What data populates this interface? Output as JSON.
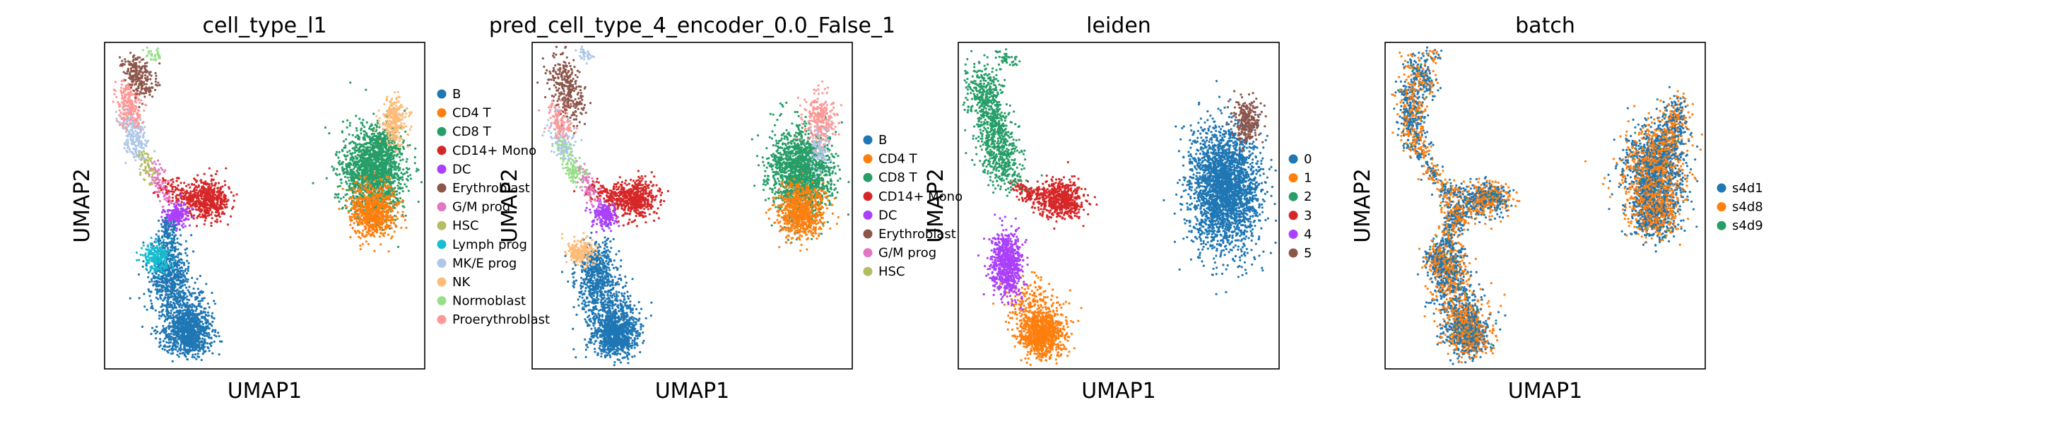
{
  "chart_data": [
    {
      "type": "scatter",
      "title": "cell_type_l1",
      "xlabel": "UMAP1",
      "ylabel": "UMAP2",
      "grid": false,
      "ticks": false,
      "legend_position": "right",
      "series": [
        {
          "name": "B",
          "color": "#1f77b4"
        },
        {
          "name": "CD4 T",
          "color": "#ff7f0e"
        },
        {
          "name": "CD8 T",
          "color": "#279e68"
        },
        {
          "name": "CD14+ Mono",
          "color": "#d62728"
        },
        {
          "name": "DC",
          "color": "#aa40fc"
        },
        {
          "name": "Erythroblast",
          "color": "#8c564b"
        },
        {
          "name": "G/M prog",
          "color": "#e377c2"
        },
        {
          "name": "HSC",
          "color": "#b5bd61"
        },
        {
          "name": "Lymph prog",
          "color": "#17becf"
        },
        {
          "name": "MK/E prog",
          "color": "#aec7e8"
        },
        {
          "name": "NK",
          "color": "#ffbb78"
        },
        {
          "name": "Normoblast",
          "color": "#98df8a"
        },
        {
          "name": "Proerythroblast",
          "color": "#ff9896"
        }
      ]
    },
    {
      "type": "scatter",
      "title": "pred_cell_type_4_encoder_0.0_False_1",
      "xlabel": "UMAP1",
      "ylabel": "UMAP2",
      "grid": false,
      "ticks": false,
      "legend_position": "right",
      "series": [
        {
          "name": "B",
          "color": "#1f77b4"
        },
        {
          "name": "CD4 T",
          "color": "#ff7f0e"
        },
        {
          "name": "CD8 T",
          "color": "#279e68"
        },
        {
          "name": "CD14+ Mono",
          "color": "#d62728"
        },
        {
          "name": "DC",
          "color": "#aa40fc"
        },
        {
          "name": "Erythroblast",
          "color": "#8c564b"
        },
        {
          "name": "G/M prog",
          "color": "#e377c2"
        },
        {
          "name": "HSC",
          "color": "#b5bd61"
        }
      ]
    },
    {
      "type": "scatter",
      "title": "leiden",
      "xlabel": "UMAP1",
      "ylabel": "UMAP2",
      "grid": false,
      "ticks": false,
      "legend_position": "right",
      "series": [
        {
          "name": "0",
          "color": "#1f77b4"
        },
        {
          "name": "1",
          "color": "#ff7f0e"
        },
        {
          "name": "2",
          "color": "#279e68"
        },
        {
          "name": "3",
          "color": "#d62728"
        },
        {
          "name": "4",
          "color": "#aa40fc"
        },
        {
          "name": "5",
          "color": "#8c564b"
        }
      ]
    },
    {
      "type": "scatter",
      "title": "batch",
      "xlabel": "UMAP1",
      "ylabel": "UMAP2",
      "grid": false,
      "ticks": false,
      "legend_position": "right",
      "series": [
        {
          "name": "s4d1",
          "color": "#1f77b4"
        },
        {
          "name": "s4d8",
          "color": "#ff7f0e"
        },
        {
          "name": "s4d9",
          "color": "#279e68"
        }
      ]
    }
  ]
}
